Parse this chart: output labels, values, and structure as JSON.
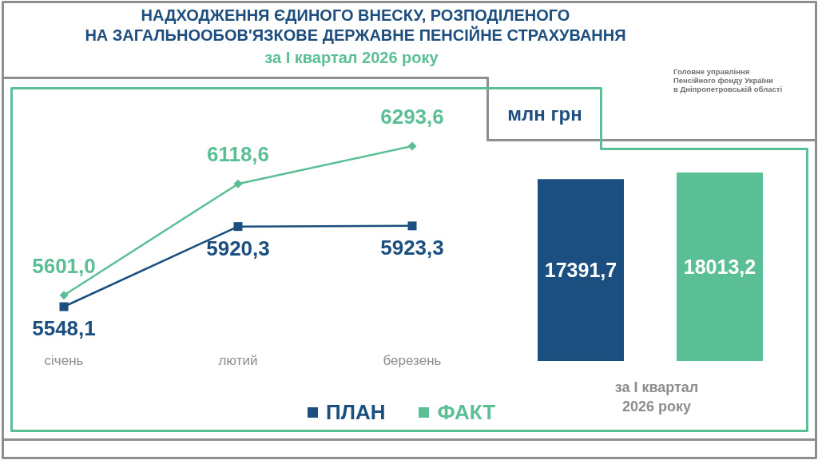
{
  "chart_data": [
    {
      "type": "line",
      "title": "НАДХОДЖЕННЯ ЄДИНОГО ВНЕСКУ, РОЗПОДІЛЕНОГО\nНА ЗАГАЛЬНООБОВ'ЯЗКОВЕ ДЕРЖАВНЕ ПЕНСІЙНЕ СТРАХУВАННЯ",
      "subtitle": "за I квартал 2026 року",
      "annotations": [
        "Головне управління\nПенсійного фонду України\nв Дніпропетровській області"
      ],
      "categories": [
        "січень",
        "лютий",
        "березень"
      ],
      "series": [
        {
          "name": "ПЛАН",
          "color": "#1b4f80",
          "values": [
            5548.1,
            5920.3,
            5923.3
          ],
          "value_labels": [
            "5548,1",
            "5920,3",
            "5923,3"
          ],
          "marker": "square"
        },
        {
          "name": "ФАКТ",
          "color": "#5bbf96",
          "values": [
            5601.0,
            6118.6,
            6293.6
          ],
          "value_labels": [
            "5601,0",
            "6118,6",
            "6293,6"
          ],
          "marker": "diamond"
        }
      ],
      "legend": "bottom"
    },
    {
      "type": "bar",
      "annotations": [
        "млн грн"
      ],
      "xlabel": "за I квартал 2026 року",
      "categories": [
        null,
        null
      ],
      "values": [
        17391.7,
        18013.2
      ],
      "colors": [
        "#1b4f80",
        "#5bbf96"
      ],
      "value_labels": [
        "17391,7",
        "18013,2"
      ]
    }
  ]
}
